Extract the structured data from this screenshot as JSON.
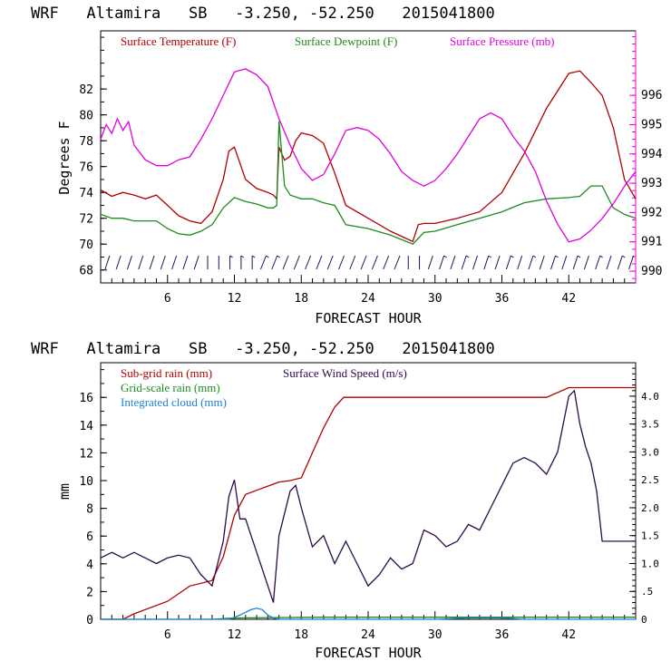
{
  "colors": {
    "temperature": "#b00000",
    "dewpoint": "#1f8a1f",
    "pressure": "#e000e0",
    "wind_barb": "#2a0a5a",
    "subgrid": "#b00000",
    "gridscale": "#1f8a1f",
    "cloud": "#1e7fd8",
    "windspeed": "#2a0a4a"
  },
  "chart_data": [
    {
      "type": "line",
      "title": "WRF   Altamira   SB   -3.250, -52.250   2015041800",
      "xlabel": "FORECAST HOUR",
      "ylabel": "Degrees F",
      "xlim": [
        0,
        48
      ],
      "ylim": [
        67,
        86.5
      ],
      "y2lim": [
        989.6,
        998.2
      ],
      "xticks": [
        "6",
        "12",
        "18",
        "24",
        "30",
        "36",
        "42"
      ],
      "xtick_values": [
        6,
        12,
        18,
        24,
        30,
        36,
        42
      ],
      "yticks": [
        "68",
        "70",
        "72",
        "74",
        "76",
        "78",
        "80",
        "82"
      ],
      "ytick_values": [
        68,
        70,
        72,
        74,
        76,
        78,
        80,
        82
      ],
      "y2ticks": [
        "990",
        "991",
        "992",
        "993",
        "994",
        "995",
        "996"
      ],
      "y2tick_values": [
        990,
        991,
        992,
        993,
        994,
        995,
        996
      ],
      "legend": [
        "Surface Temperature (F)",
        "Surface Dewpoint (F)",
        "Surface Pressure (mb)"
      ],
      "series": [
        {
          "name": "Surface Temperature (F)",
          "axis": "left",
          "x": [
            0,
            1,
            2,
            3,
            4,
            5,
            6,
            7,
            8,
            9,
            10,
            11,
            11.5,
            12,
            13,
            14,
            15,
            15.5,
            15.8,
            16,
            16.5,
            17,
            17.5,
            18,
            19,
            20,
            21,
            22,
            24,
            26,
            28,
            28.5,
            29,
            30,
            32,
            34,
            36,
            38,
            40,
            42,
            43,
            44,
            45,
            46,
            47,
            48
          ],
          "y": [
            74.2,
            73.7,
            74,
            73.8,
            73.5,
            73.8,
            73,
            72.2,
            71.8,
            71.6,
            72.5,
            75,
            77.2,
            77.5,
            75,
            74.3,
            74,
            73.8,
            73.5,
            77.5,
            76.5,
            76.8,
            78,
            78.6,
            78.4,
            77.8,
            75.5,
            73,
            72,
            71,
            70.2,
            71.5,
            71.6,
            71.6,
            72,
            72.5,
            74,
            77,
            80.5,
            83.2,
            83.4,
            82.5,
            81.5,
            79,
            75,
            73.5
          ]
        },
        {
          "name": "Surface Dewpoint (F)",
          "axis": "left",
          "x": [
            0,
            1,
            2,
            3,
            4,
            5,
            6,
            7,
            8,
            9,
            10,
            11,
            12,
            13,
            14,
            15,
            15.5,
            15.8,
            16,
            16.5,
            17,
            18,
            19,
            20,
            21,
            22,
            24,
            26,
            28,
            29,
            30,
            32,
            34,
            36,
            38,
            40,
            42,
            43,
            44,
            45,
            46,
            47,
            48
          ],
          "y": [
            72.3,
            72,
            72,
            71.8,
            71.8,
            71.8,
            71.2,
            70.8,
            70.7,
            71,
            71.5,
            72.8,
            73.6,
            73.3,
            73.1,
            72.8,
            72.8,
            73,
            79.5,
            74.5,
            73.8,
            73.5,
            73.5,
            73.2,
            73,
            71.5,
            71.2,
            70.7,
            70,
            70.9,
            71,
            71.5,
            72,
            72.5,
            73.2,
            73.5,
            73.6,
            73.7,
            74.5,
            74.5,
            72.8,
            72.3,
            72
          ]
        },
        {
          "name": "Surface Pressure (mb)",
          "axis": "right",
          "x": [
            0,
            0.5,
            1,
            1.5,
            2,
            2.5,
            3,
            4,
            5,
            6,
            7,
            8,
            9,
            10,
            11,
            12,
            13,
            14,
            15,
            16,
            17,
            18,
            19,
            20,
            21,
            22,
            23,
            24,
            25,
            26,
            27,
            28,
            29,
            30,
            31,
            32,
            33,
            34,
            35,
            36,
            37,
            38,
            39,
            40,
            41,
            42,
            43,
            44,
            45,
            46,
            47,
            48
          ],
          "y": [
            994.5,
            995,
            994.7,
            995.2,
            994.8,
            995.1,
            994.3,
            993.8,
            993.6,
            993.6,
            993.8,
            993.9,
            994.5,
            995.2,
            996,
            996.8,
            996.9,
            996.7,
            996.3,
            995.2,
            994.3,
            993.5,
            993.1,
            993.3,
            994.0,
            994.8,
            994.9,
            994.8,
            994.5,
            994.0,
            993.4,
            993.1,
            992.9,
            993.1,
            993.5,
            994.0,
            994.6,
            995.2,
            995.4,
            995.2,
            994.6,
            994.1,
            993.4,
            992.4,
            991.6,
            991.0,
            991.1,
            991.4,
            991.8,
            992.3,
            992.9,
            993.4
          ]
        }
      ]
    },
    {
      "type": "line",
      "title": "WRF   Altamira   SB   -3.250, -52.250   2015041800",
      "xlabel": "FORECAST HOUR",
      "ylabel": "mm",
      "xlim": [
        0,
        48
      ],
      "ylim": [
        0,
        18.5
      ],
      "y2lim": [
        0,
        4.6
      ],
      "xticks": [
        "6",
        "12",
        "18",
        "24",
        "30",
        "36",
        "42"
      ],
      "xtick_values": [
        6,
        12,
        18,
        24,
        30,
        36,
        42
      ],
      "yticks": [
        "0",
        "2",
        "4",
        "6",
        "8",
        "10",
        "12",
        "14",
        "16"
      ],
      "ytick_values": [
        0,
        2,
        4,
        6,
        8,
        10,
        12,
        14,
        16
      ],
      "y2ticks": [
        "0",
        ".5",
        "1.0",
        "1.5",
        "2.0",
        "2.5",
        "3.0",
        "3.5",
        "4.0"
      ],
      "y2tick_values": [
        0,
        0.5,
        1,
        1.5,
        2,
        2.5,
        3,
        3.5,
        4
      ],
      "legend": [
        "Sub-grid rain (mm)",
        "Surface Wind Speed (m/s)",
        "Grid-scale rain (mm)",
        "Integrated cloud (mm)"
      ],
      "series": [
        {
          "name": "Sub-grid rain (mm)",
          "axis": "left",
          "x": [
            0,
            2,
            3,
            5,
            6,
            8,
            10,
            11,
            12,
            13,
            14,
            15,
            16,
            17,
            18,
            19,
            20,
            21,
            21.8,
            30,
            40,
            42,
            48
          ],
          "y": [
            0,
            0,
            0.4,
            1.0,
            1.3,
            2.4,
            2.8,
            4.5,
            7.5,
            9.0,
            9.3,
            9.6,
            9.9,
            10,
            10.2,
            12,
            13.8,
            15.3,
            16,
            16,
            16,
            16.7,
            16.7
          ]
        },
        {
          "name": "Grid-scale rain (mm)",
          "axis": "left",
          "x": [
            0,
            10,
            12,
            20,
            30,
            40,
            48
          ],
          "y": [
            0,
            0,
            0.1,
            0.15,
            0.15,
            0.15,
            0.15
          ]
        },
        {
          "name": "Integrated cloud (mm)",
          "axis": "left",
          "x": [
            0,
            11.5,
            12.5,
            13.5,
            14,
            14.5,
            15,
            15.5,
            16,
            30,
            33,
            36,
            38,
            48
          ],
          "y": [
            0,
            0,
            0.3,
            0.7,
            0.8,
            0.7,
            0.3,
            0.1,
            0,
            0,
            0.1,
            0.1,
            0,
            0
          ]
        },
        {
          "name": "Surface Wind Speed (m/s)",
          "axis": "right",
          "x": [
            0,
            1,
            2,
            3,
            4,
            5,
            6,
            7,
            8,
            9,
            10,
            11,
            11.5,
            12,
            12.5,
            13,
            13.5,
            14,
            15,
            15.5,
            16,
            17,
            17.5,
            18,
            19,
            20,
            21,
            22,
            23,
            24,
            25,
            26,
            27,
            28,
            29,
            30,
            31,
            32,
            33,
            34,
            35,
            36,
            37,
            38,
            39,
            40,
            41,
            42,
            42.5,
            43,
            43.5,
            44,
            44.5,
            45,
            46,
            47,
            48
          ],
          "y": [
            1.1,
            1.2,
            1.1,
            1.2,
            1.1,
            1.0,
            1.1,
            1.15,
            1.1,
            0.8,
            0.6,
            1.4,
            2.2,
            2.5,
            1.8,
            1.8,
            1.5,
            1.2,
            0.6,
            0.3,
            1.5,
            2.3,
            2.4,
            2.0,
            1.3,
            1.5,
            1.0,
            1.4,
            1.0,
            0.6,
            0.8,
            1.1,
            0.9,
            1.0,
            1.6,
            1.5,
            1.3,
            1.4,
            1.7,
            1.6,
            2.0,
            2.4,
            2.8,
            2.9,
            2.8,
            2.6,
            3.0,
            4.0,
            4.1,
            3.5,
            3.1,
            2.8,
            2.3,
            1.4,
            1.4,
            1.4,
            1.4
          ]
        }
      ]
    }
  ]
}
